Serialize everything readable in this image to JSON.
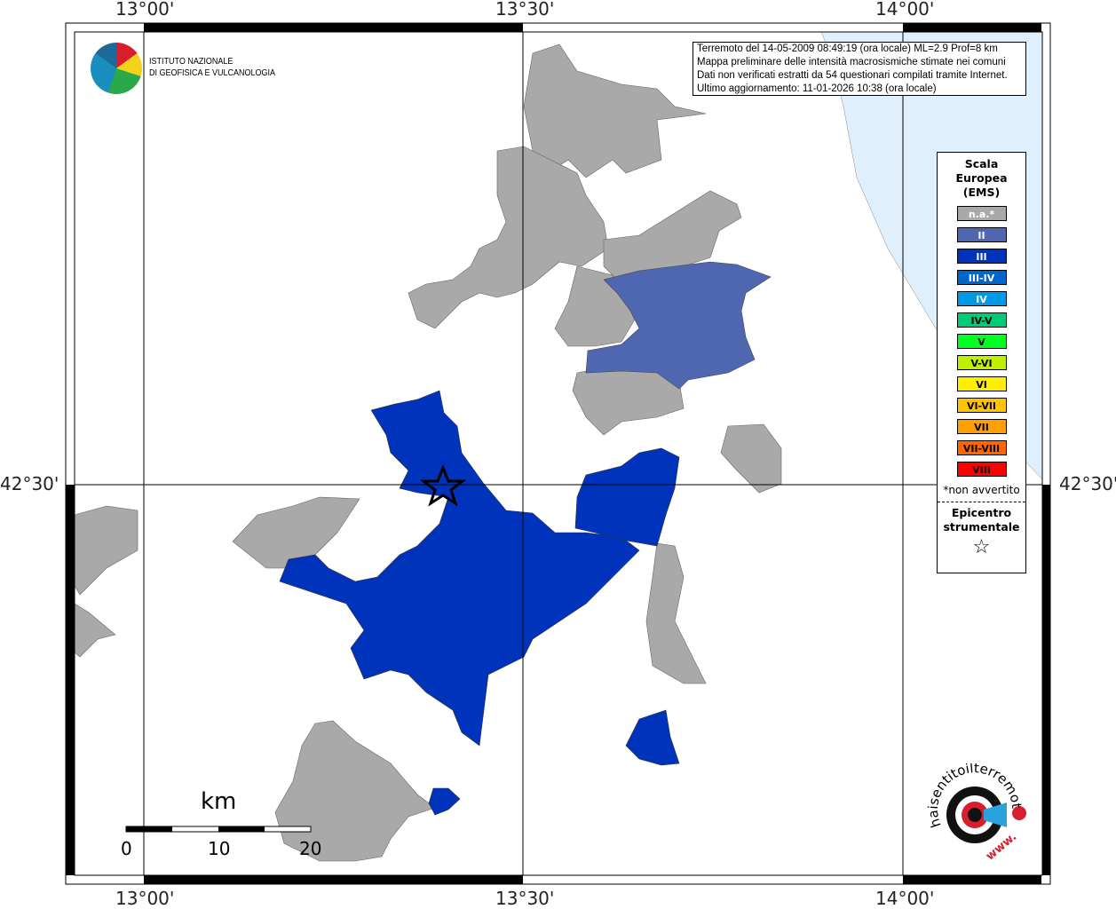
{
  "map": {
    "top_ticks": [
      "13°00'",
      "13°30'",
      "14°00'"
    ],
    "bottom_ticks": [
      "13°00'",
      "13°30'",
      "14°00'"
    ],
    "left_ticks": [
      "42°30'"
    ],
    "right_ticks": [
      "42°30'"
    ],
    "colors": {
      "sea": "#dff0fc",
      "na": "#a9a9a9",
      "II": "#4f67b0",
      "III": "#0033bb"
    }
  },
  "logo": {
    "line1": "ISTITUTO NAZIONALE",
    "line2": "DI GEOFISICA E VULCANOLOGIA"
  },
  "info": {
    "lines": [
      "Terremoto del 14-05-2009 08:49:19 (ora locale) ML=2.9 Prof=8 km",
      "Mappa preliminare delle intensità macrosismiche stimate nei comuni",
      "Dati non verificati estratti da 54 questionari compilati tramite Internet.",
      "Ultimo aggiornamento: 11-01-2026 10:38 (ora locale)"
    ]
  },
  "legend": {
    "title": "Scala Europea (EMS)",
    "items": [
      {
        "label": "n.a.*",
        "color": "#a9a9a9",
        "text": "#fff"
      },
      {
        "label": "II",
        "color": "#4f67b0",
        "text": "#fff"
      },
      {
        "label": "III",
        "color": "#0033bb",
        "text": "#fff"
      },
      {
        "label": "III-IV",
        "color": "#0066cc",
        "text": "#fff"
      },
      {
        "label": "IV",
        "color": "#0099e6",
        "text": "#fff"
      },
      {
        "label": "IV-V",
        "color": "#00cc77",
        "text": "#000"
      },
      {
        "label": "V",
        "color": "#00ff22",
        "text": "#000"
      },
      {
        "label": "V-VI",
        "color": "#c0f000",
        "text": "#000"
      },
      {
        "label": "VI",
        "color": "#ffee00",
        "text": "#000"
      },
      {
        "label": "VI-VII",
        "color": "#ffc400",
        "text": "#000"
      },
      {
        "label": "VII",
        "color": "#ffa000",
        "text": "#000"
      },
      {
        "label": "VII-VIII",
        "color": "#ff6600",
        "text": "#000"
      },
      {
        "label": "VIII",
        "color": "#ff0000",
        "text": "#000"
      }
    ],
    "note": "*non avvertito",
    "epicenter": "Epicentro strumentale",
    "star": "☆"
  },
  "scale": {
    "unit": "km",
    "labels": [
      "0",
      "10",
      "20"
    ]
  },
  "brand": {
    "text": "haisentitoilterremoto.it",
    "www": "www."
  }
}
